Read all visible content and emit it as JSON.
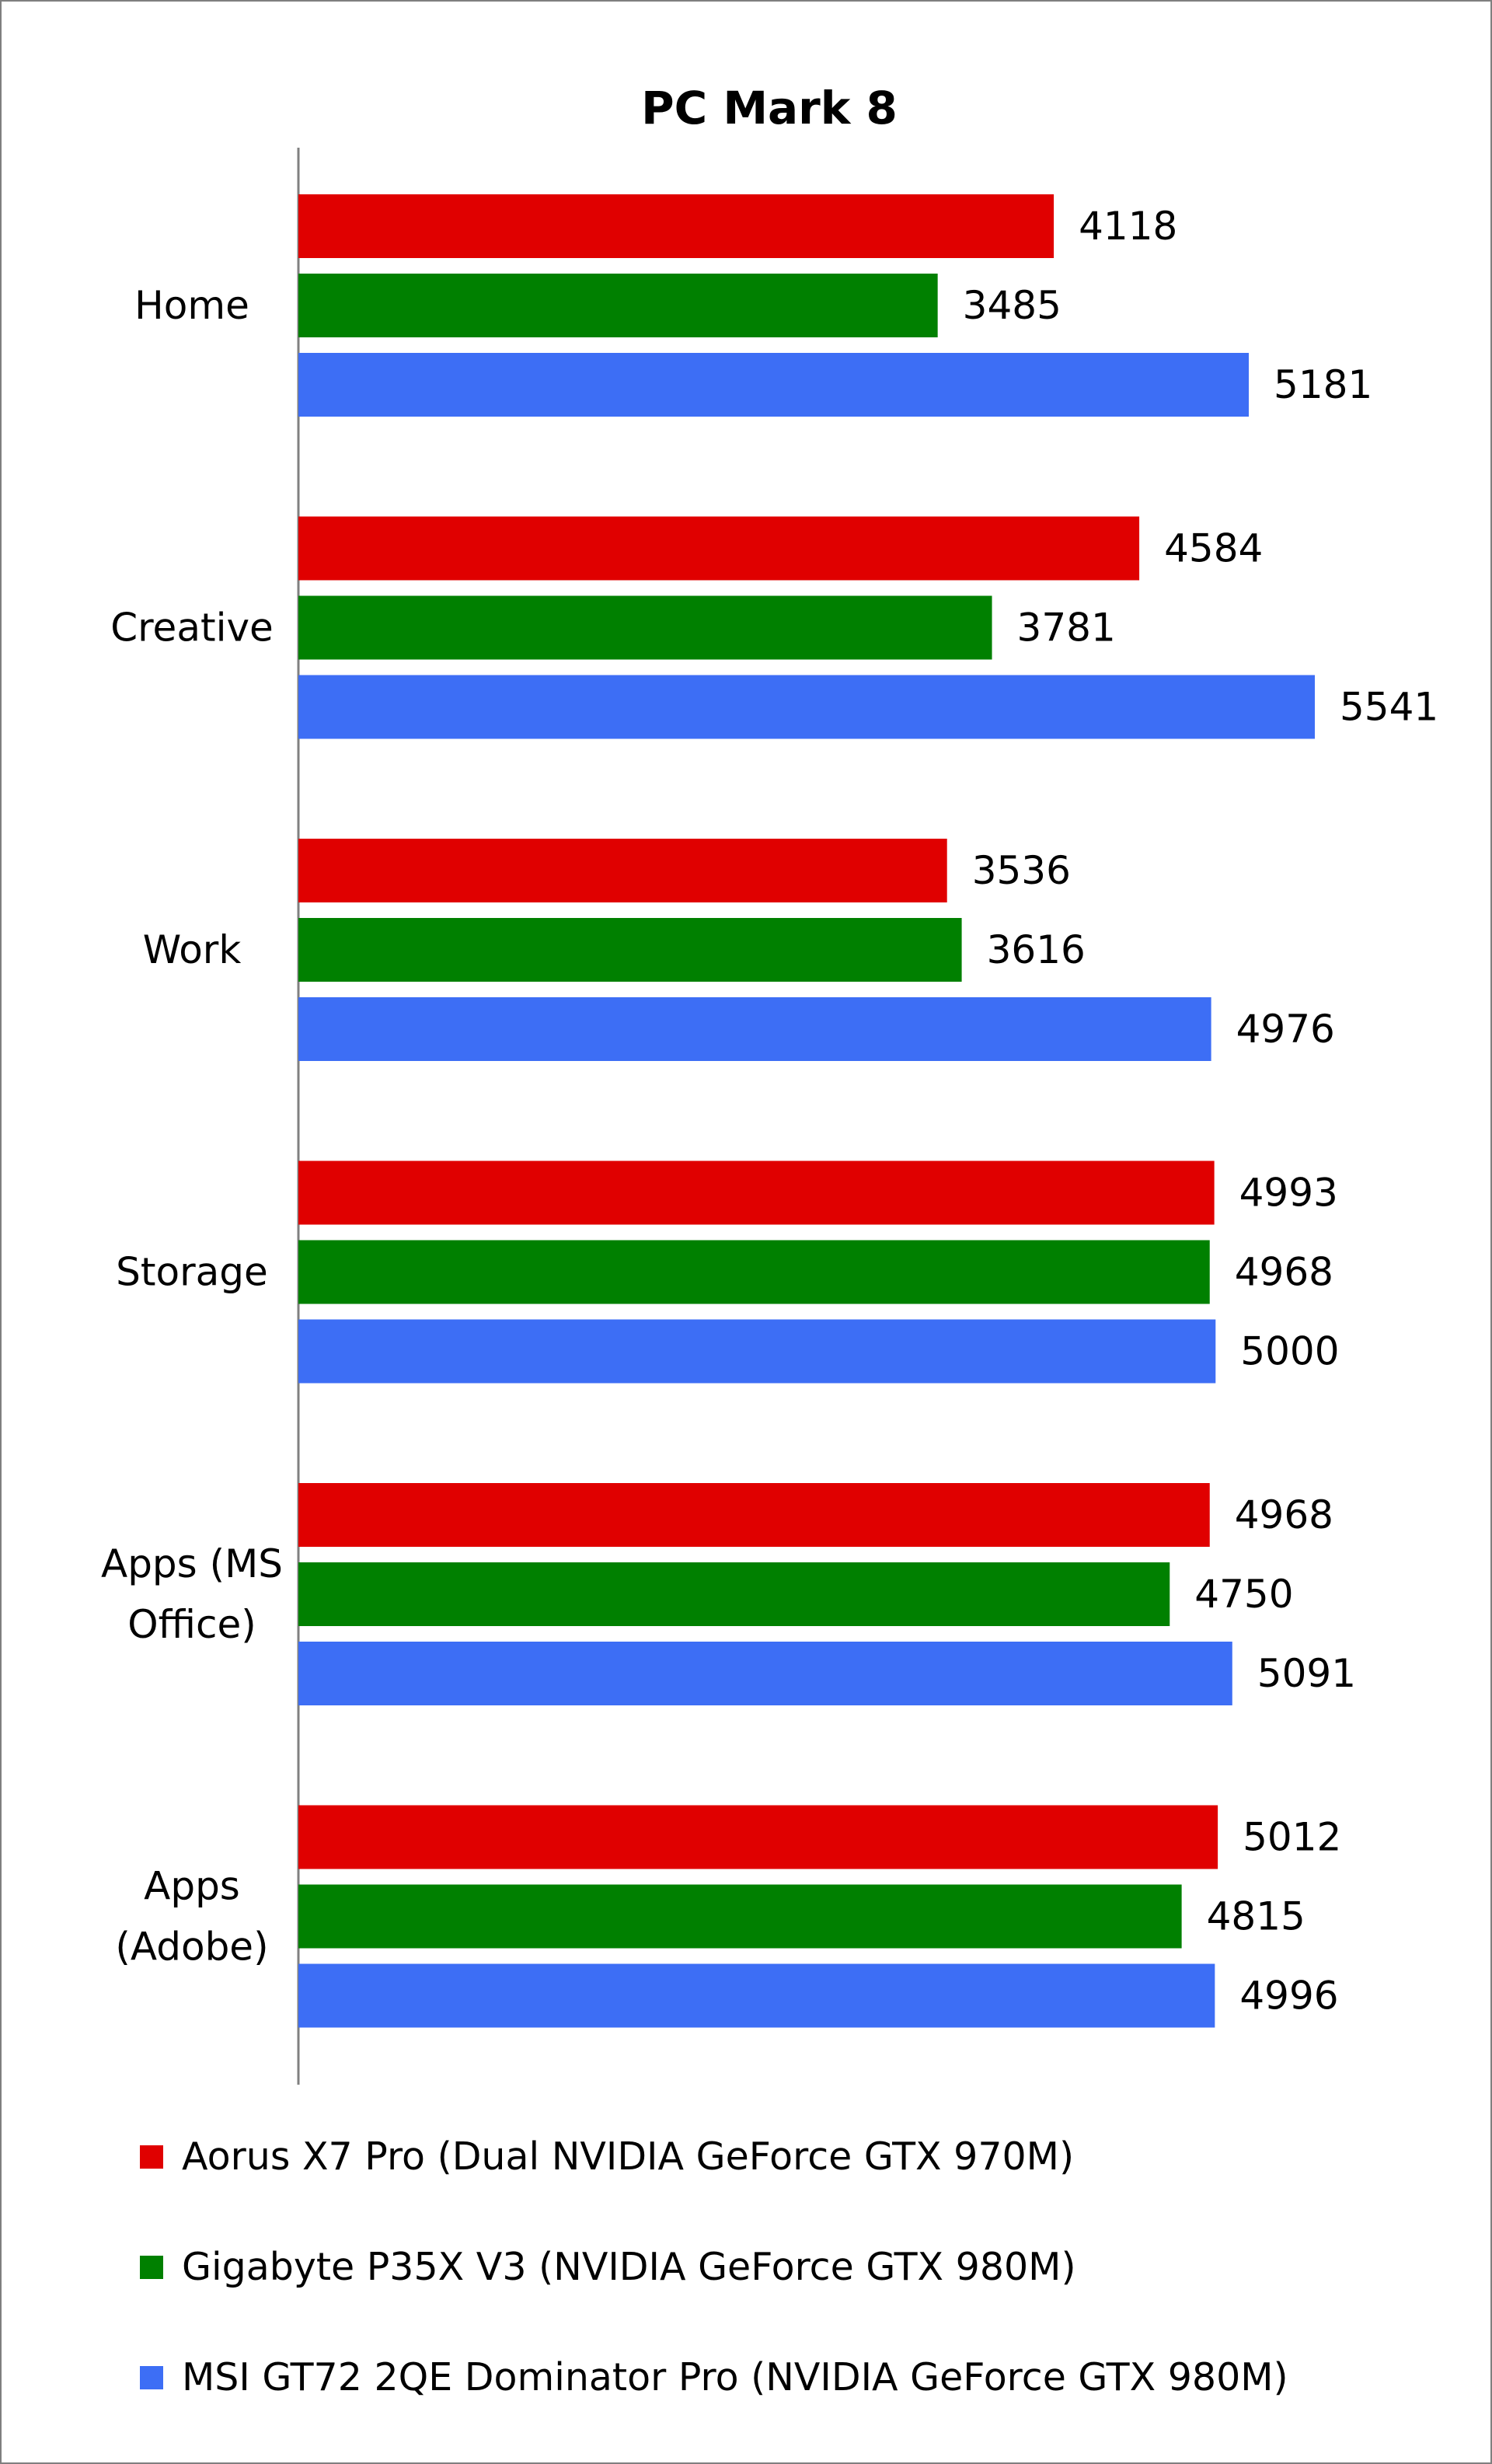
{
  "chart_data": {
    "type": "bar",
    "orientation": "horizontal",
    "title": "PC Mark 8",
    "xlabel": "",
    "ylabel": "",
    "xlim": [
      0,
      6000
    ],
    "grid": false,
    "legend_position": "bottom",
    "categories": [
      "Home",
      "Creative",
      "Work",
      "Storage",
      "Apps (MS Office)",
      "Apps (Adobe)"
    ],
    "category_lines": [
      [
        "Home"
      ],
      [
        "Creative"
      ],
      [
        "Work"
      ],
      [
        "Storage"
      ],
      [
        "Apps (MS",
        "Office)"
      ],
      [
        "Apps",
        "(Adobe)"
      ]
    ],
    "series": [
      {
        "name": "Aorus X7 Pro (Dual NVIDIA GeForce GTX 970M)",
        "color": "#e00000",
        "values": [
          4118,
          4584,
          3536,
          4993,
          4968,
          5012
        ]
      },
      {
        "name": "Gigabyte P35X V3 (NVIDIA GeForce GTX 980M)",
        "color": "#008000",
        "values": [
          3485,
          3781,
          3616,
          4968,
          4750,
          4815
        ]
      },
      {
        "name": "MSI GT72 2QE Dominator Pro (NVIDIA GeForce GTX 980M)",
        "color": "#3d6ef5",
        "values": [
          5181,
          5541,
          4976,
          5000,
          5091,
          4996
        ]
      }
    ],
    "value_labels": true
  }
}
